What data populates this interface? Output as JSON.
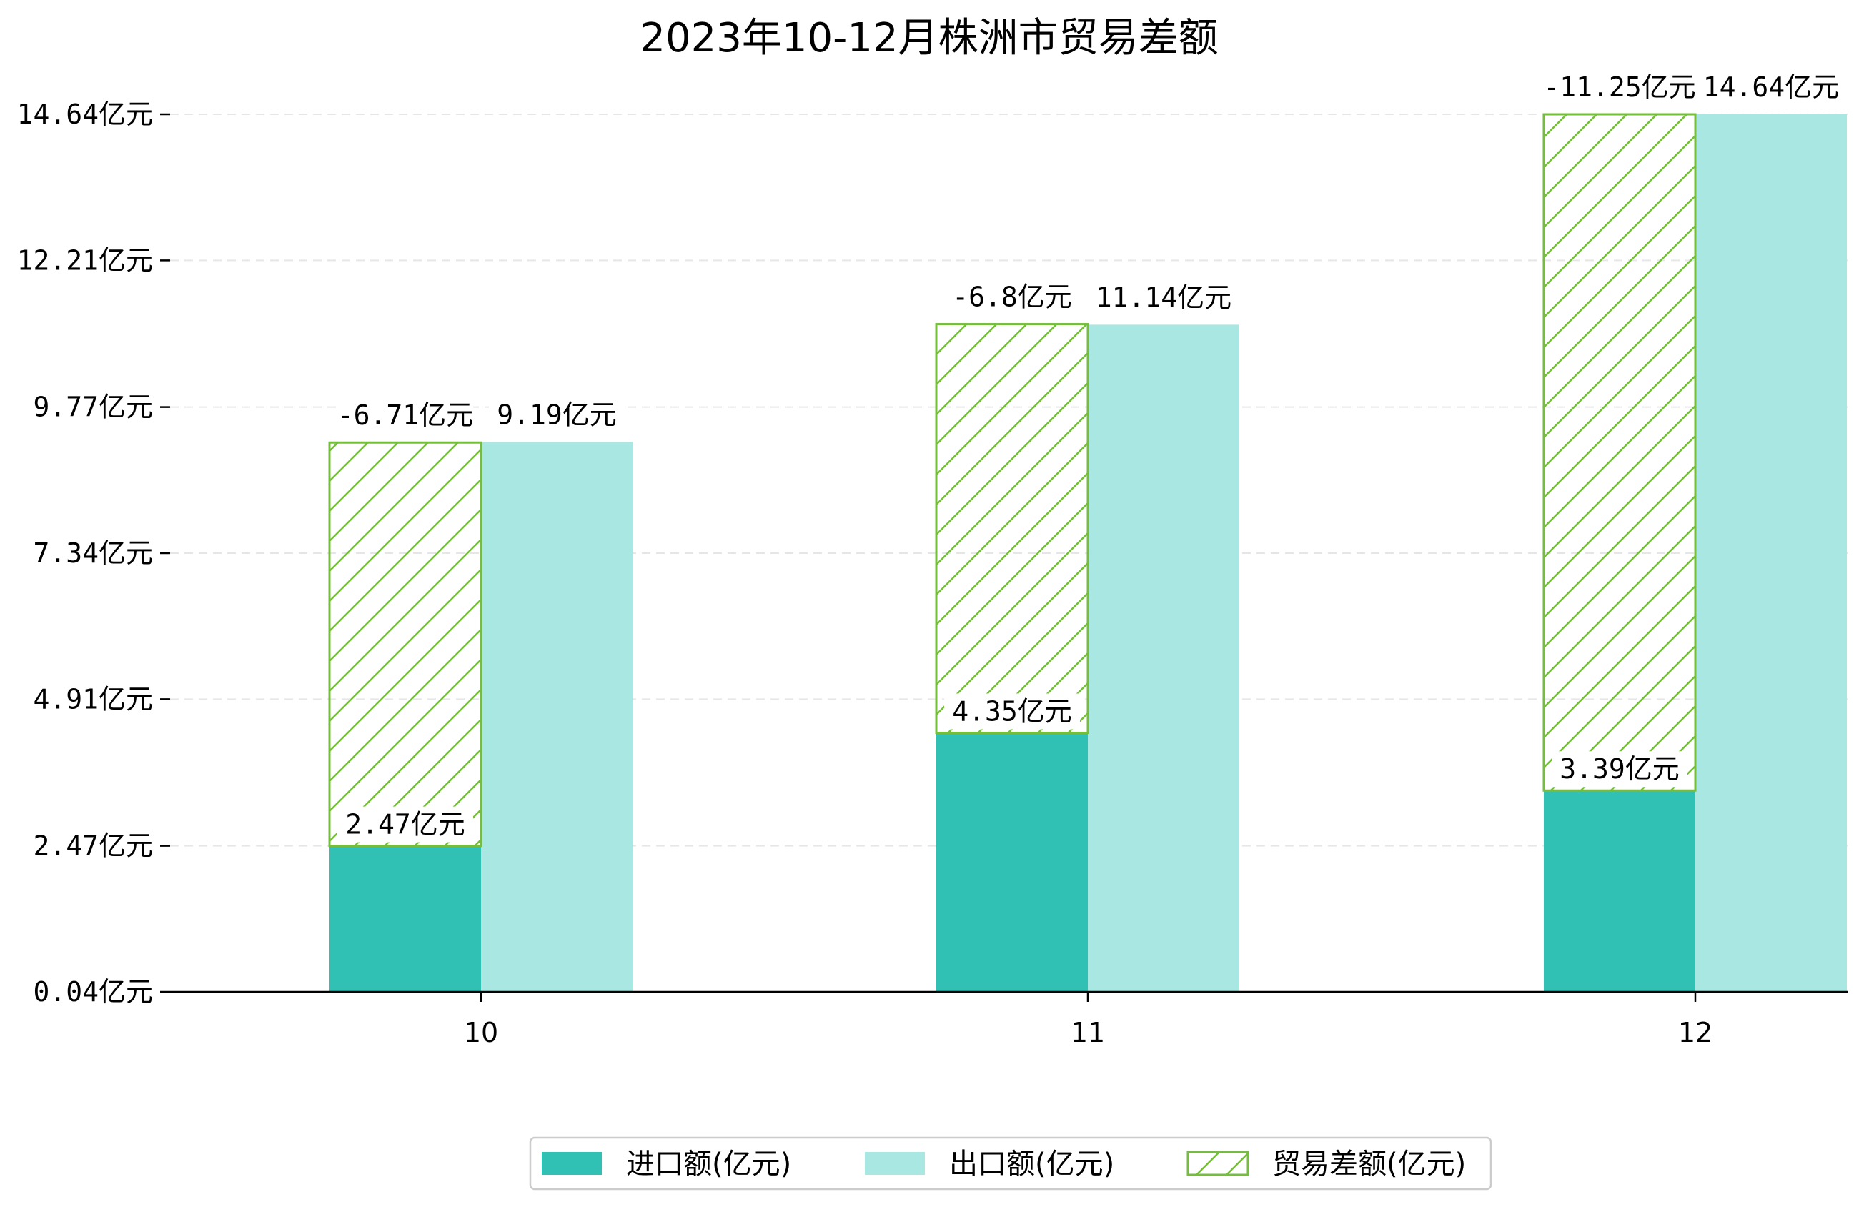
{
  "chart_data": {
    "type": "bar",
    "title": "2023年10-12月株洲市贸易差额",
    "xlabel": "",
    "ylabel": "",
    "categories": [
      "10",
      "11",
      "12"
    ],
    "y_ticks": [
      "0.04亿元",
      "2.47亿元",
      "4.91亿元",
      "7.34亿元",
      "9.77亿元",
      "12.21亿元",
      "14.64亿元"
    ],
    "y_tick_values": [
      0.04,
      2.47,
      4.91,
      7.34,
      9.77,
      12.21,
      14.64
    ],
    "ylim": [
      0.04,
      15.5
    ],
    "grid": "horizontal-dashed",
    "legend_position": "bottom-center",
    "series": [
      {
        "name": "进口额(亿元)",
        "color": "#31c0b4",
        "pattern": "solid",
        "values": [
          2.47,
          4.35,
          3.39
        ],
        "labels": [
          "2.47亿元",
          "4.35亿元",
          "3.39亿元"
        ]
      },
      {
        "name": "出口额(亿元)",
        "color": "#a9e8e2",
        "pattern": "solid",
        "values": [
          9.19,
          11.14,
          14.64
        ],
        "labels": [
          "9.19亿元",
          "11.14亿元",
          "14.64亿元"
        ]
      },
      {
        "name": "贸易差额(亿元)",
        "color": "#76bd3f",
        "pattern": "hatch",
        "values": [
          -6.71,
          -6.8,
          -11.25
        ],
        "labels": [
          "-6.71亿元",
          "-6.8亿元",
          "-11.25亿元"
        ]
      }
    ]
  }
}
